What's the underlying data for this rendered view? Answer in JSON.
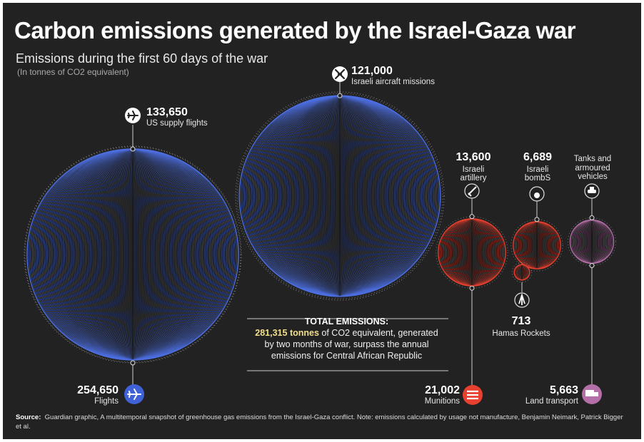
{
  "title": "Carbon emissions generated by the Israel-Gaza war",
  "subtitle": "Emissions during the first 60 days of the war",
  "unit_note": "(In tonnes of CO2 equivalent)",
  "total": {
    "heading": "TOTAL EMISSIONS:",
    "highlight": "281,315 tonnes",
    "line1_rest": " of CO2 equivalent, generated",
    "line2": "by two months of war, surpass the annual",
    "line3": "emissions for Central African Republic"
  },
  "source": {
    "label": "Source:",
    "text": "Guardian graphic, A multitemporal snapshot of greenhouse gas emissions from the Israel-Gaza conflict. Note: emissions calculated  by usage not manufacture, Benjamin Neimark, Patrick Bigger et al."
  },
  "colors": {
    "background": "#222222",
    "flights": "#4d6fe0",
    "munitions": "#e8402f",
    "land_transport": "#b46fa8",
    "highlight": "#f2df8a"
  },
  "chart_data": {
    "type": "bubble",
    "groups": [
      {
        "name": "Flights",
        "value": 254650,
        "value_label": "254,650",
        "icon": "plane-icon",
        "components": [
          {
            "name": "US supply flights",
            "value": 133650,
            "value_label": "133,650",
            "icon": "plane-icon"
          },
          {
            "name": "Israeli aircraft missions",
            "value": 121000,
            "value_label": "121,000",
            "icon": "satellite-icon"
          }
        ]
      },
      {
        "name": "Munitions",
        "value": 21002,
        "value_label": "21,002",
        "icon": "munitions-icon",
        "components": [
          {
            "name": "Israeli artillery",
            "value": 13600,
            "value_label": "13,600",
            "icon": "artillery-icon"
          },
          {
            "name": "Israeli bombS",
            "value": 6689,
            "value_label": "6,689",
            "icon": "bomb-icon"
          },
          {
            "name": "Hamas Rockets",
            "value": 713,
            "value_label": "713",
            "icon": "rocket-icon"
          }
        ]
      },
      {
        "name": "Land transport",
        "value": 5663,
        "value_label": "5,663",
        "icon": "truck-icon",
        "components": [
          {
            "name": "Tanks and armoured vehicles",
            "value": 5663,
            "value_label": "",
            "icon": "tank-icon"
          }
        ]
      }
    ]
  }
}
